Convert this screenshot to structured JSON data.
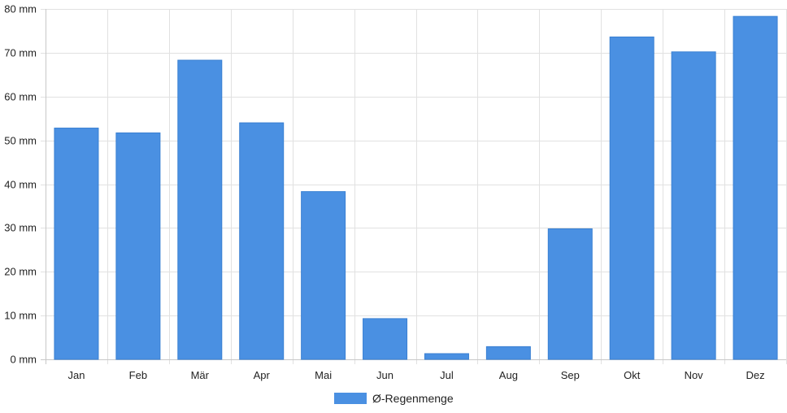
{
  "chart_data": {
    "type": "bar",
    "title": "",
    "xlabel": "",
    "ylabel": "",
    "categories": [
      "Jan",
      "Feb",
      "Mär",
      "Apr",
      "Mai",
      "Jun",
      "Jul",
      "Aug",
      "Sep",
      "Okt",
      "Nov",
      "Dez"
    ],
    "series": [
      {
        "name": "Ø-Regenmenge",
        "color": "#4a90e2",
        "values": [
          52.8,
          51.7,
          68.3,
          54.0,
          38.3,
          9.3,
          1.3,
          2.9,
          29.8,
          73.6,
          70.2,
          78.3
        ]
      }
    ],
    "ylim": [
      0,
      80
    ],
    "yticks": [
      0,
      10,
      20,
      30,
      40,
      50,
      60,
      70,
      80
    ],
    "ytick_labels": [
      "0 mm",
      "10 mm",
      "20 mm",
      "30 mm",
      "40 mm",
      "50 mm",
      "60 mm",
      "70 mm",
      "80 mm"
    ],
    "grid": true,
    "legend_position": "bottom-center"
  }
}
